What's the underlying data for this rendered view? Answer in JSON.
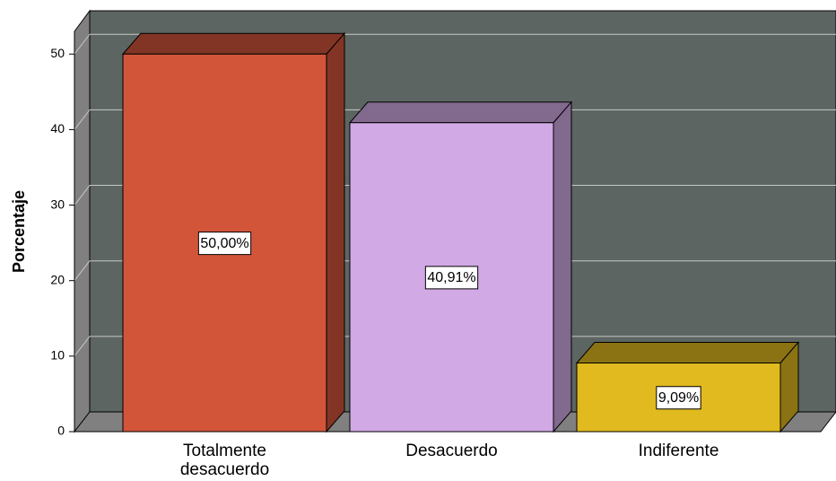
{
  "chart_data": {
    "type": "bar",
    "categories": [
      "Totalmente desacuerdo",
      "Desacuerdo",
      "Indiferente"
    ],
    "values": [
      50,
      40.91,
      9.09
    ],
    "value_labels": [
      "50,00%",
      "40,91%",
      "9,09%"
    ],
    "colors": [
      "#d2553a",
      "#d1a9e5",
      "#e0ba1f"
    ],
    "ylabel": "Porcentaje",
    "ylim": [
      0,
      53
    ],
    "yticks": [
      0,
      10,
      20,
      30,
      40,
      50
    ],
    "grid": true
  }
}
